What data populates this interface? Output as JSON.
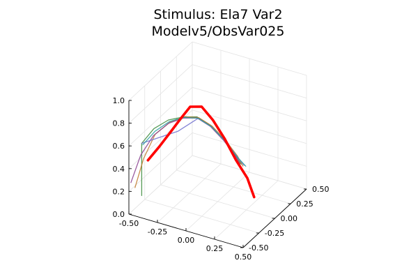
{
  "chart_data": {
    "type": "line3d",
    "title": [
      "Stimulus: Ela7 Var2",
      "Modelv5/ObsVar025"
    ],
    "x_axis": {
      "range": [
        -0.5,
        0.5
      ],
      "ticks": [
        "-0.50",
        "-0.25",
        "0.00",
        "0.25",
        "0.50"
      ]
    },
    "y_axis": {
      "range": [
        -0.5,
        0.5
      ],
      "ticks": [
        "-0.50",
        "-0.25",
        "0.00",
        "0.25",
        "0.50"
      ]
    },
    "z_axis": {
      "range": [
        0,
        1
      ],
      "ticks": [
        "0.0",
        "0.2",
        "0.4",
        "0.6",
        "0.8",
        "1.0"
      ]
    },
    "grid": true,
    "legend": "none",
    "series": [
      {
        "color": "#ff0000",
        "emphasis": true,
        "points": [
          [
            -0.45,
            -0.29,
            0.38
          ],
          [
            -0.35,
            -0.29,
            0.53
          ],
          [
            -0.25,
            -0.29,
            0.69
          ],
          [
            -0.17,
            -0.29,
            0.82
          ],
          [
            -0.08,
            -0.29,
            0.96
          ],
          [
            0.02,
            -0.29,
            0.99
          ],
          [
            0.12,
            -0.29,
            0.9
          ],
          [
            0.22,
            -0.29,
            0.77
          ],
          [
            0.32,
            -0.29,
            0.61
          ],
          [
            0.42,
            -0.29,
            0.48
          ],
          [
            0.48,
            -0.29,
            0.33
          ]
        ]
      },
      {
        "color": "#3a8a3a",
        "points": [
          [
            -0.36,
            -0.55,
            0.23
          ],
          [
            -0.36,
            -0.55,
            0.69
          ],
          [
            -0.27,
            -0.52,
            0.83
          ],
          [
            -0.17,
            -0.47,
            0.91
          ],
          [
            -0.07,
            -0.42,
            0.94
          ],
          [
            0.03,
            -0.38,
            0.95
          ],
          [
            0.13,
            -0.35,
            0.89
          ],
          [
            0.23,
            -0.32,
            0.78
          ],
          [
            0.31,
            -0.3,
            0.67
          ],
          [
            0.36,
            -0.28,
            0.58
          ]
        ]
      },
      {
        "color": "#c0792c",
        "points": [
          [
            -0.43,
            -0.53,
            0.27
          ],
          [
            -0.36,
            -0.52,
            0.54
          ],
          [
            -0.27,
            -0.5,
            0.77
          ],
          [
            -0.16,
            -0.46,
            0.89
          ],
          [
            -0.06,
            -0.41,
            0.94
          ],
          [
            0.04,
            -0.37,
            0.94
          ],
          [
            0.14,
            -0.34,
            0.88
          ],
          [
            0.24,
            -0.31,
            0.77
          ],
          [
            0.33,
            -0.28,
            0.64
          ],
          [
            0.37,
            -0.27,
            0.56
          ]
        ]
      },
      {
        "color": "#8a3f8f",
        "points": [
          [
            -0.46,
            -0.54,
            0.31
          ],
          [
            -0.38,
            -0.53,
            0.57
          ],
          [
            -0.28,
            -0.51,
            0.76
          ],
          [
            -0.17,
            -0.47,
            0.88
          ],
          [
            -0.07,
            -0.42,
            0.93
          ],
          [
            0.03,
            -0.38,
            0.94
          ],
          [
            0.13,
            -0.35,
            0.88
          ],
          [
            0.23,
            -0.32,
            0.77
          ],
          [
            0.32,
            -0.29,
            0.64
          ],
          [
            0.35,
            -0.28,
            0.58
          ]
        ]
      },
      {
        "color": "#6f6fcf",
        "points": [
          [
            -0.36,
            -0.55,
            0.69
          ],
          [
            -0.1,
            -0.45,
            0.82
          ],
          [
            0.04,
            -0.38,
            0.94
          ],
          [
            0.14,
            -0.35,
            0.88
          ],
          [
            0.24,
            -0.31,
            0.76
          ],
          [
            0.34,
            -0.28,
            0.62
          ],
          [
            0.38,
            -0.27,
            0.57
          ]
        ]
      },
      {
        "color": "#2aa0a0",
        "points": [
          [
            -0.35,
            -0.55,
            0.68
          ],
          [
            -0.26,
            -0.52,
            0.81
          ],
          [
            -0.16,
            -0.47,
            0.9
          ],
          [
            -0.06,
            -0.42,
            0.94
          ],
          [
            0.04,
            -0.38,
            0.94
          ],
          [
            0.14,
            -0.35,
            0.88
          ],
          [
            0.24,
            -0.31,
            0.76
          ],
          [
            0.33,
            -0.28,
            0.63
          ],
          [
            0.39,
            -0.26,
            0.56
          ]
        ]
      }
    ]
  }
}
